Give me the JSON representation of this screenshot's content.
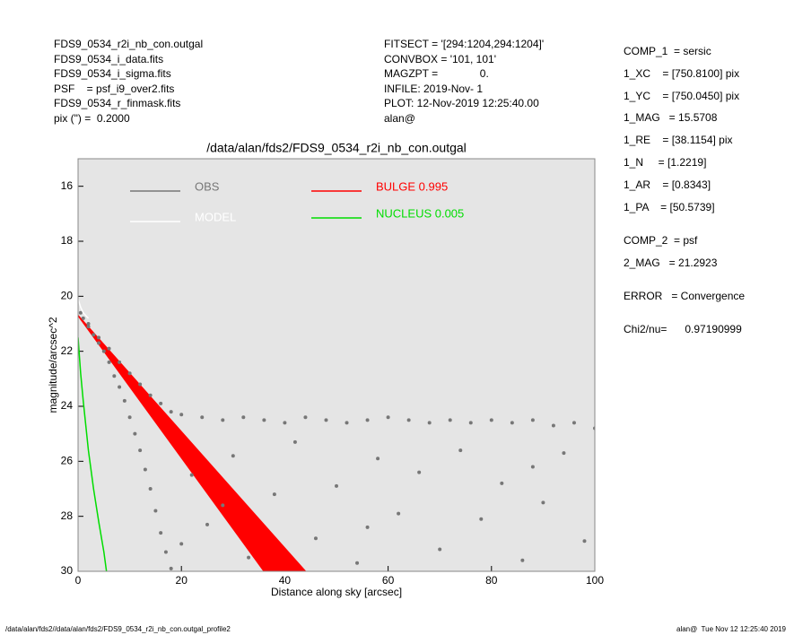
{
  "header": {
    "left": [
      "FDS9_0534_r2i_nb_con.outgal",
      "FDS9_0534_i_data.fits",
      "FDS9_0534_i_sigma.fits",
      "PSF    = psf_i9_over2.fits",
      "FDS9_0534_r_finmask.fits",
      "pix (\") =  0.2000"
    ],
    "middle": [
      "FITSECT = '[294:1204,294:1204]'",
      "CONVBOX = '101, 101'",
      "MAGZPT =              0.",
      "INFILE: 2019-Nov- 1",
      "PLOT: 12-Nov-2019 12:25:40.00",
      "alan@"
    ]
  },
  "params": [
    [
      "COMP_1  = sersic",
      "1_XC    = [750.8100] pix",
      "1_YC    = [750.0450] pix",
      "1_MAG   = 15.5708",
      "1_RE    = [38.1154] pix",
      "1_N     = [1.2219]",
      "1_AR    = [0.8343]",
      "1_PA    = [50.5739]"
    ],
    [
      "COMP_2  = psf",
      "2_MAG   = 21.2923"
    ],
    [
      "ERROR   = Convergence"
    ],
    [
      "Chi2/nu=      0.97190999"
    ]
  ],
  "footer": {
    "left": "/data/alan/fds2//data/alan/fds2/FDS9_0534_r2i_nb_con.outgal_profile2",
    "right": "alan@  Tue Nov 12 12:25:40 2019"
  },
  "chart_data": {
    "type": "scatter",
    "title": "/data/alan/fds2/FDS9_0534_r2i_nb_con.outgal",
    "xlabel": "Distance along sky [arcsec]",
    "ylabel": "magnitude/arcsec^2",
    "xlim": [
      0,
      100
    ],
    "ylim": [
      30,
      15
    ],
    "xticks": [
      0,
      20,
      40,
      60,
      80,
      100
    ],
    "yticks": [
      16,
      18,
      20,
      22,
      24,
      26,
      28,
      30
    ],
    "background": "#e5e5e5",
    "series": [
      {
        "name": "OBS",
        "color": "#777777",
        "style": "points",
        "x": [
          0.5,
          1,
          2,
          3,
          4,
          5,
          6,
          7,
          8,
          9,
          10,
          11,
          12,
          13,
          14,
          15,
          16,
          17,
          18,
          2,
          4,
          6,
          8,
          10,
          12,
          14,
          16,
          18,
          20,
          24,
          28,
          32,
          36,
          40,
          44,
          48,
          52,
          56,
          60,
          64,
          68,
          72,
          76,
          80,
          84,
          88,
          92,
          96,
          100,
          22,
          25,
          30,
          33,
          38,
          42,
          46,
          50,
          54,
          58,
          62,
          66,
          70,
          74,
          78,
          82,
          86,
          90,
          94,
          98,
          20,
          28,
          56,
          88
        ],
        "values": [
          20.6,
          20.8,
          21.1,
          21.4,
          21.7,
          22.0,
          22.4,
          22.9,
          23.3,
          23.8,
          24.4,
          25.0,
          25.6,
          26.3,
          27.0,
          27.8,
          28.6,
          29.3,
          29.9,
          21.0,
          21.5,
          21.9,
          22.4,
          22.8,
          23.2,
          23.6,
          23.9,
          24.2,
          24.3,
          24.4,
          24.5,
          24.4,
          24.5,
          24.6,
          24.4,
          24.5,
          24.6,
          24.5,
          24.4,
          24.5,
          24.6,
          24.5,
          24.6,
          24.5,
          24.6,
          24.5,
          24.7,
          24.6,
          24.8,
          26.5,
          28.3,
          25.8,
          29.5,
          27.2,
          25.3,
          28.8,
          26.9,
          29.7,
          25.9,
          27.9,
          26.4,
          29.2,
          25.6,
          28.1,
          26.8,
          29.6,
          27.5,
          25.7,
          28.9,
          29.0,
          27.6,
          28.4,
          26.2
        ]
      },
      {
        "name": "MODEL",
        "color": "#ffffff",
        "style": "line",
        "x": [
          0,
          0.5,
          1,
          2
        ],
        "values": [
          20.1,
          20.4,
          20.6,
          20.8
        ]
      },
      {
        "name": "BULGE  0.995",
        "color": "#ff0000",
        "style": "area",
        "x": [
          0,
          36,
          44,
          0
        ],
        "values": [
          20.7,
          30,
          30,
          20.7
        ]
      },
      {
        "name": "NUCLEUS  0.005",
        "color": "#00dd00",
        "style": "line",
        "x": [
          0,
          0.5,
          1,
          2,
          3,
          4,
          5,
          5.5
        ],
        "values": [
          21.5,
          22.8,
          23.8,
          25.6,
          27.0,
          28.2,
          29.3,
          30
        ]
      }
    ]
  }
}
